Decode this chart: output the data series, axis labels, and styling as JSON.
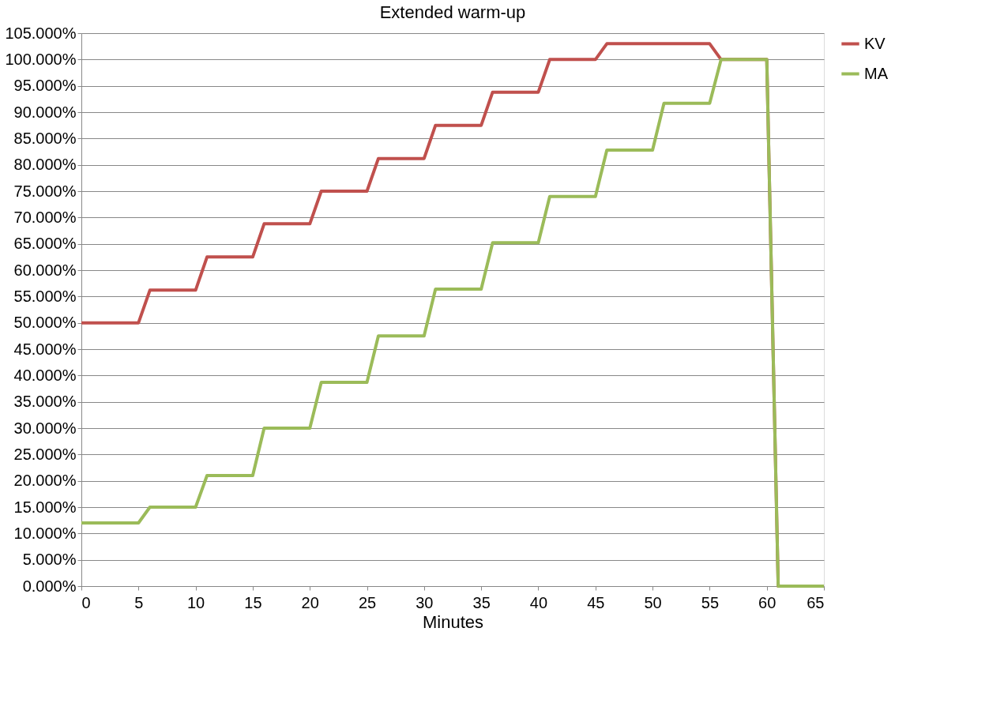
{
  "chart_data": {
    "type": "line",
    "title": "Extended warm-up",
    "xlabel": "Minutes",
    "xlim": [
      0,
      65
    ],
    "xticks": [
      0,
      5,
      10,
      15,
      20,
      25,
      30,
      35,
      40,
      45,
      50,
      55,
      60,
      65
    ],
    "ylim": [
      0,
      105
    ],
    "yticks": [
      {
        "value": 0,
        "label": "0.000%"
      },
      {
        "value": 5,
        "label": "5.000%"
      },
      {
        "value": 10,
        "label": "10.000%"
      },
      {
        "value": 15,
        "label": "15.000%"
      },
      {
        "value": 20,
        "label": "20.000%"
      },
      {
        "value": 25,
        "label": "25.000%"
      },
      {
        "value": 30,
        "label": "30.000%"
      },
      {
        "value": 35,
        "label": "35.000%"
      },
      {
        "value": 40,
        "label": "40.000%"
      },
      {
        "value": 45,
        "label": "45.000%"
      },
      {
        "value": 50,
        "label": "50.000%"
      },
      {
        "value": 55,
        "label": "55.000%"
      },
      {
        "value": 60,
        "label": "60.000%"
      },
      {
        "value": 65,
        "label": "65.000%"
      },
      {
        "value": 70,
        "label": "70.000%"
      },
      {
        "value": 75,
        "label": "75.000%"
      },
      {
        "value": 80,
        "label": "80.000%"
      },
      {
        "value": 85,
        "label": "85.000%"
      },
      {
        "value": 90,
        "label": "90.000%"
      },
      {
        "value": 95,
        "label": "95.000%"
      },
      {
        "value": 100,
        "label": "100.000%"
      },
      {
        "value": 105,
        "label": "105.000%"
      }
    ],
    "grid": "y",
    "legend": "right",
    "marker": "none",
    "line_style": "solid",
    "series": [
      {
        "name": "KV",
        "color": "#c0504d",
        "x": [
          0,
          5,
          6,
          10,
          11,
          15,
          16,
          20,
          21,
          25,
          26,
          30,
          31,
          35,
          36,
          40,
          41,
          45,
          46,
          55,
          56,
          60,
          61,
          65
        ],
        "values": [
          50,
          50,
          56.2,
          56.2,
          62.5,
          62.5,
          68.8,
          68.8,
          75,
          75,
          81.2,
          81.2,
          87.5,
          87.5,
          93.8,
          93.8,
          100,
          100,
          103,
          103,
          100,
          100,
          0,
          0
        ]
      },
      {
        "name": "MA",
        "color": "#9bbb59",
        "x": [
          0,
          5,
          6,
          10,
          11,
          15,
          16,
          20,
          21,
          25,
          26,
          30,
          31,
          35,
          36,
          40,
          41,
          45,
          46,
          50,
          51,
          55,
          56,
          60,
          61,
          65
        ],
        "values": [
          12,
          12,
          15,
          15,
          21,
          21,
          30,
          30,
          38.7,
          38.7,
          47.5,
          47.5,
          56.4,
          56.4,
          65.2,
          65.2,
          74,
          74,
          82.8,
          82.8,
          91.7,
          91.7,
          100,
          100,
          0,
          0
        ]
      }
    ]
  }
}
